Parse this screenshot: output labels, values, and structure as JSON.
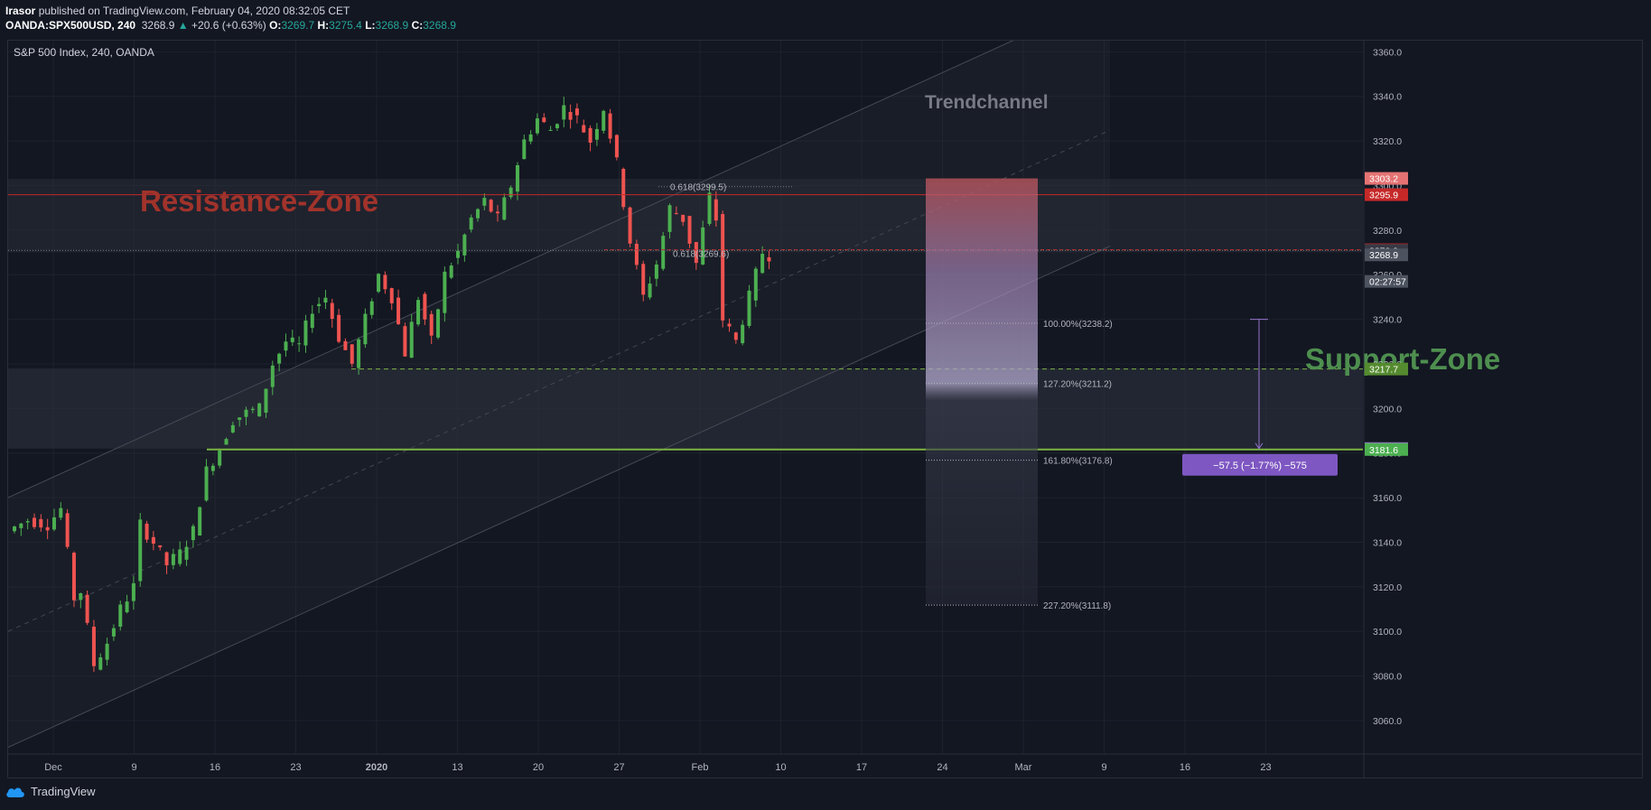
{
  "header": {
    "author": "Irasor",
    "published_text": " published on TradingView.com, February 04, 2020 08:32:05 CET",
    "symbol": "OANDA:SPX500USD, 240",
    "last": "3268.9",
    "change_arrow": "▲",
    "change": "+20.6 (+0.63%)",
    "o_label": "O:",
    "o_value": "3269.7",
    "h_label": "H:",
    "h_value": "3275.4",
    "l_label": "L:",
    "l_value": "3268.9",
    "c_label": "C:",
    "c_value": "3268.9"
  },
  "chart_data": {
    "type": "candlestick",
    "title": "S&P 500 Index, 240, OANDA",
    "ylim": [
      3045,
      3365
    ],
    "y_ticks": [
      3060,
      3080,
      3100,
      3120,
      3140,
      3160,
      3180,
      3200,
      3220,
      3240,
      3260,
      3280,
      3300,
      3320,
      3340,
      3360
    ],
    "y_tick_labels": [
      "3060.0",
      "3080.0",
      "3100.0",
      "3120.0",
      "3140.0",
      "3160.0",
      "3180.0",
      "3200.0",
      "3220.0",
      "3240.0",
      "3260.0",
      "3280.0",
      "3300.0",
      "3320.0",
      "3340.0",
      "3360.0"
    ],
    "x_ticks": [
      {
        "label": "Dec",
        "bold": false
      },
      {
        "label": "9",
        "bold": false
      },
      {
        "label": "16",
        "bold": false
      },
      {
        "label": "23",
        "bold": false
      },
      {
        "label": "2020",
        "bold": true
      },
      {
        "label": "13",
        "bold": false
      },
      {
        "label": "20",
        "bold": false
      },
      {
        "label": "27",
        "bold": false
      },
      {
        "label": "Feb",
        "bold": false
      },
      {
        "label": "10",
        "bold": false
      },
      {
        "label": "17",
        "bold": false
      },
      {
        "label": "24",
        "bold": false
      },
      {
        "label": "Mar",
        "bold": false
      },
      {
        "label": "9",
        "bold": false
      },
      {
        "label": "16",
        "bold": false
      },
      {
        "label": "23",
        "bold": false
      }
    ],
    "price_path": [
      [
        0,
        3145
      ],
      [
        3,
        3150
      ],
      [
        6,
        3148
      ],
      [
        8,
        3155
      ],
      [
        10,
        3115
      ],
      [
        11,
        3118
      ],
      [
        13,
        3085
      ],
      [
        15,
        3095
      ],
      [
        17,
        3110
      ],
      [
        19,
        3120
      ],
      [
        20,
        3148
      ],
      [
        22,
        3140
      ],
      [
        24,
        3130
      ],
      [
        26,
        3135
      ],
      [
        28,
        3145
      ],
      [
        30,
        3172
      ],
      [
        32,
        3182
      ],
      [
        34,
        3195
      ],
      [
        36,
        3198
      ],
      [
        38,
        3200
      ],
      [
        40,
        3220
      ],
      [
        42,
        3230
      ],
      [
        44,
        3228
      ],
      [
        46,
        3245
      ],
      [
        48,
        3250
      ],
      [
        50,
        3232
      ],
      [
        52,
        3220
      ],
      [
        54,
        3240
      ],
      [
        56,
        3260
      ],
      [
        58,
        3250
      ],
      [
        60,
        3225
      ],
      [
        62,
        3250
      ],
      [
        64,
        3230
      ],
      [
        66,
        3260
      ],
      [
        68,
        3270
      ],
      [
        70,
        3285
      ],
      [
        72,
        3293
      ],
      [
        74,
        3285
      ],
      [
        76,
        3300
      ],
      [
        78,
        3320
      ],
      [
        80,
        3330
      ],
      [
        82,
        3325
      ],
      [
        84,
        3335
      ],
      [
        86,
        3330
      ],
      [
        88,
        3320
      ],
      [
        90,
        3335
      ],
      [
        92,
        3310
      ],
      [
        94,
        3275
      ],
      [
        96,
        3250
      ],
      [
        98,
        3265
      ],
      [
        100,
        3290
      ],
      [
        102,
        3285
      ],
      [
        104,
        3265
      ],
      [
        106,
        3295
      ],
      [
        107,
        3285
      ],
      [
        108,
        3240
      ],
      [
        110,
        3230
      ],
      [
        112,
        3250
      ],
      [
        114,
        3270
      ],
      [
        115,
        3268.9
      ]
    ],
    "candle_count": 115,
    "annotations": {
      "trendchannel_label": "Trendchannel",
      "resistance_label": "Resistance-Zone",
      "support_label": "Support-Zone",
      "fib_upper": "0.618(3299.5)",
      "fib_lower": "0.618(3269.6)",
      "ext_100": "100.00%(3238.2)",
      "ext_127": "127.20%(3211.2)",
      "ext_161": "161.80%(3176.8)",
      "ext_227": "227.20%(3111.8)",
      "measure_label": "−57.5 (−1.77%) −575"
    },
    "levels": {
      "resistance_top": 3303.2,
      "resistance_line": 3295.9,
      "red_dashed": 3271.2,
      "last_dotted": 3270.9,
      "support_dashed": 3217.7,
      "support_line": 3181.6,
      "measure_top": 3240,
      "measure_bottom": 3182.0
    },
    "price_tags": [
      {
        "value": 3303.2,
        "text": "3303.2",
        "bg": "#e57373",
        "fg": "#ffffff"
      },
      {
        "value": 3295.9,
        "text": "3295.9",
        "bg": "#c62828",
        "fg": "#ffffff"
      },
      {
        "value": 3271.2,
        "text": "3271.2",
        "bg": "#c62828",
        "fg": "#ffffff"
      },
      {
        "value": 3270.9,
        "text": "3270.9",
        "bg": "#363a45",
        "fg": "#ffffff"
      },
      {
        "value": 3268.9,
        "text": "3268.9",
        "bg": "#4c525e",
        "fg": "#ffffff"
      },
      {
        "value": 3257.0,
        "text": "02:27:57",
        "bg": "#4c525e",
        "fg": "#ffffff"
      },
      {
        "value": 3217.7,
        "text": "3217.7",
        "bg": "#558b2f",
        "fg": "#ffffff"
      },
      {
        "value": 3182.0,
        "text": "3182.0",
        "bg": "#9575cd",
        "fg": "#ffffff"
      },
      {
        "value": 3181.6,
        "text": "3181.6",
        "bg": "#4caf50",
        "fg": "#ffffff"
      }
    ],
    "colors": {
      "up": "#4caf50",
      "down": "#ef5350",
      "resistance_text": "#a1332b",
      "support_text": "#4e8f4f",
      "trend_text": "#787b86",
      "measure": "#7e57c2"
    }
  },
  "footer": {
    "brand": "TradingView"
  }
}
